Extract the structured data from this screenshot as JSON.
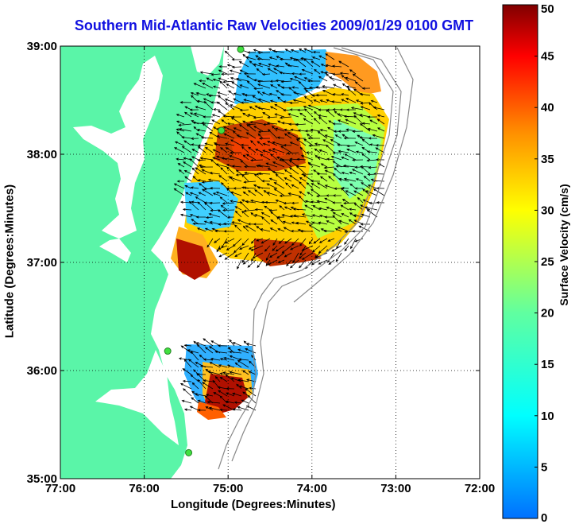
{
  "title": "Southern Mid-Atlantic Raw Velocities 2009/01/29 0100 GMT",
  "x_axis": {
    "label": "Longitude (Degrees:Minutes)",
    "ticks": [
      {
        "value": -77,
        "label": "77:00"
      },
      {
        "value": -76,
        "label": "76:00"
      },
      {
        "value": -75,
        "label": "75:00"
      },
      {
        "value": -74,
        "label": "74:00"
      },
      {
        "value": -73,
        "label": "73:00"
      },
      {
        "value": -72,
        "label": "72:00"
      }
    ]
  },
  "y_axis": {
    "label": "Latitude (Degrees:Minutes)",
    "ticks": [
      {
        "value": 35,
        "label": "35:00"
      },
      {
        "value": 36,
        "label": "36:00"
      },
      {
        "value": 37,
        "label": "37:00"
      },
      {
        "value": 38,
        "label": "38:00"
      },
      {
        "value": 39,
        "label": "39:00"
      }
    ]
  },
  "colorbar": {
    "label": "Surface Velocity (cm/s)",
    "ticks": [
      "0",
      "5",
      "10",
      "15",
      "20",
      "25",
      "30",
      "35",
      "40",
      "45",
      "50"
    ],
    "min": 0,
    "max": 50
  },
  "colors": {
    "land": "#5af5a8",
    "title": "#1010e0",
    "ocean": "#ffffff"
  },
  "station_markers": [
    {
      "lon": -74.85,
      "lat": 38.97
    },
    {
      "lon": -75.08,
      "lat": 38.22
    },
    {
      "lon": -75.72,
      "lat": 36.18
    },
    {
      "lon": -75.47,
      "lat": 35.24
    }
  ]
}
